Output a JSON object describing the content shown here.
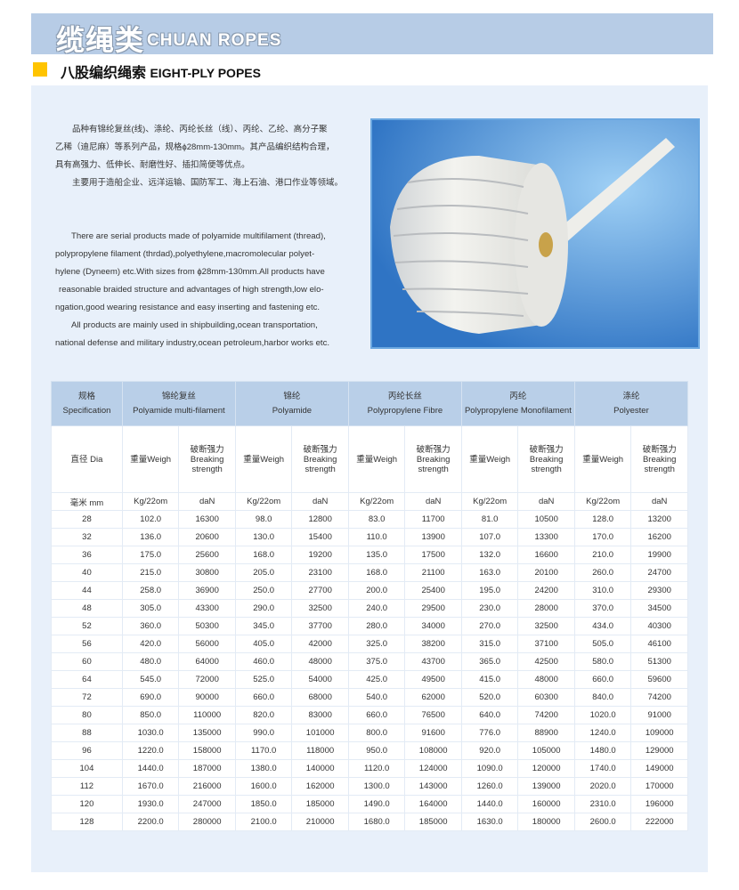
{
  "header": {
    "title_cn": "缆绳类",
    "title_en": "CHUAN ROPES"
  },
  "section": {
    "title_cn": "八股编织绳索",
    "title_en": "EIGHT-PLY POPES",
    "marker_color": "#ffc400"
  },
  "description_cn": [
    "品种有锦纶复丝(线)、涤纶、丙纶长丝（线）、丙纶、乙纶、高分子聚",
    "乙稀（迪尼麻）等系列产品，规格ɸ28mm-130mm。其产品编织结构合理，",
    "具有高强力、低伸长、耐磨性好、插扣简便等优点。",
    "主要用于造船企业、远洋运输、国防军工、海上石油、港口作业等领域。"
  ],
  "description_en": [
    "There are serial products made of polyamide multifilament (thread),",
    "polypropylene filament (thrdad),polyethylene,macromolecular polyet-",
    "hylene (Dyneem) etc.With sizes from ɸ28mm-130mm.All products have",
    "reasonable braided structure and advantages of high strength,low elo-",
    "ngation,good wearing resistance and easy  inserting and fastening etc.",
    "All products are mainly used in shipbuilding,ocean transportation,",
    "national defense and military industry,ocean petroleum,harbor works etc."
  ],
  "table": {
    "spec": {
      "cn": "规格",
      "en": "Specification"
    },
    "materials": [
      {
        "cn": "锦纶复丝",
        "en": "Polyamide multi-filament"
      },
      {
        "cn": "锦纶",
        "en": "Polyamide"
      },
      {
        "cn": "丙纶长丝",
        "en": "Polypropylene Fibre"
      },
      {
        "cn": "丙纶",
        "en": "Polypropylene Monofilament"
      },
      {
        "cn": "涤纶",
        "en": "Polyester"
      }
    ],
    "dia_label": "直径 Dia",
    "weigh_label": "重量Weigh",
    "break_label": [
      "破断强力",
      "Breaking",
      "strength"
    ],
    "unit_dia": "毫米 mm",
    "unit_weigh": "Kg/22om",
    "unit_break": "daN",
    "rows": [
      [
        "28",
        "102.0",
        "16300",
        "98.0",
        "12800",
        "83.0",
        "11700",
        "81.0",
        "10500",
        "128.0",
        "13200"
      ],
      [
        "32",
        "136.0",
        "20600",
        "130.0",
        "15400",
        "110.0",
        "13900",
        "107.0",
        "13300",
        "170.0",
        "16200"
      ],
      [
        "36",
        "175.0",
        "25600",
        "168.0",
        "19200",
        "135.0",
        "17500",
        "132.0",
        "16600",
        "210.0",
        "19900"
      ],
      [
        "40",
        "215.0",
        "30800",
        "205.0",
        "23100",
        "168.0",
        "21100",
        "163.0",
        "20100",
        "260.0",
        "24700"
      ],
      [
        "44",
        "258.0",
        "36900",
        "250.0",
        "27700",
        "200.0",
        "25400",
        "195.0",
        "24200",
        "310.0",
        "29300"
      ],
      [
        "48",
        "305.0",
        "43300",
        "290.0",
        "32500",
        "240.0",
        "29500",
        "230.0",
        "28000",
        "370.0",
        "34500"
      ],
      [
        "52",
        "360.0",
        "50300",
        "345.0",
        "37700",
        "280.0",
        "34000",
        "270.0",
        "32500",
        "434.0",
        "40300"
      ],
      [
        "56",
        "420.0",
        "56000",
        "405.0",
        "42000",
        "325.0",
        "38200",
        "315.0",
        "37100",
        "505.0",
        "46100"
      ],
      [
        "60",
        "480.0",
        "64000",
        "460.0",
        "48000",
        "375.0",
        "43700",
        "365.0",
        "42500",
        "580.0",
        "51300"
      ],
      [
        "64",
        "545.0",
        "72000",
        "525.0",
        "54000",
        "425.0",
        "49500",
        "415.0",
        "48000",
        "660.0",
        "59600"
      ],
      [
        "72",
        "690.0",
        "90000",
        "660.0",
        "68000",
        "540.0",
        "62000",
        "520.0",
        "60300",
        "840.0",
        "74200"
      ],
      [
        "80",
        "850.0",
        "110000",
        "820.0",
        "83000",
        "660.0",
        "76500",
        "640.0",
        "74200",
        "1020.0",
        "91000"
      ],
      [
        "88",
        "1030.0",
        "135000",
        "990.0",
        "101000",
        "800.0",
        "91600",
        "776.0",
        "88900",
        "1240.0",
        "109000"
      ],
      [
        "96",
        "1220.0",
        "158000",
        "1170.0",
        "118000",
        "950.0",
        "108000",
        "920.0",
        "105000",
        "1480.0",
        "129000"
      ],
      [
        "104",
        "1440.0",
        "187000",
        "1380.0",
        "140000",
        "1120.0",
        "124000",
        "1090.0",
        "120000",
        "1740.0",
        "149000"
      ],
      [
        "112",
        "1670.0",
        "216000",
        "1600.0",
        "162000",
        "1300.0",
        "143000",
        "1260.0",
        "139000",
        "2020.0",
        "170000"
      ],
      [
        "120",
        "1930.0",
        "247000",
        "1850.0",
        "185000",
        "1490.0",
        "164000",
        "1440.0",
        "160000",
        "2310.0",
        "196000"
      ],
      [
        "128",
        "2200.0",
        "280000",
        "2100.0",
        "210000",
        "1680.0",
        "185000",
        "1630.0",
        "180000",
        "2600.0",
        "222000"
      ]
    ]
  }
}
